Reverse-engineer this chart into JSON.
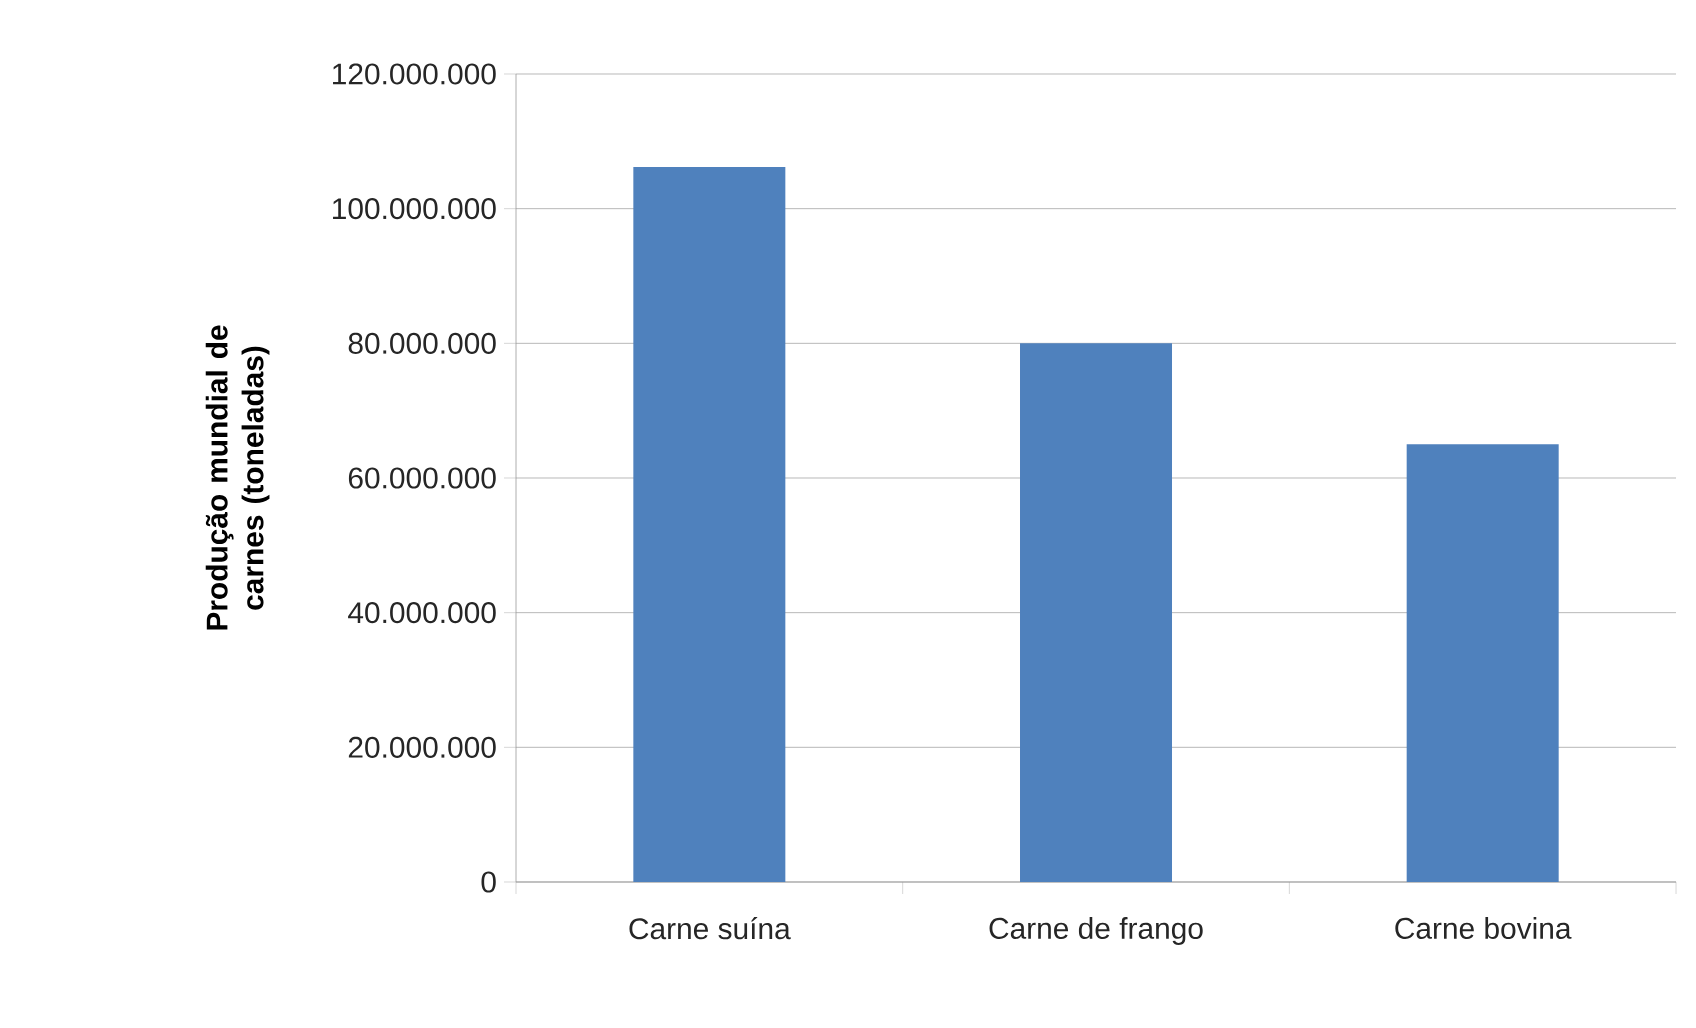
{
  "chart_data": {
    "type": "bar",
    "ylabel": "Produção mundial de carnes (toneladas)",
    "categories": [
      "Carne suína",
      "Carne de frango",
      "Carne bovina"
    ],
    "values": [
      106200000,
      80000000,
      65000000
    ],
    "color": "#4f81bd",
    "ylim": [
      0,
      120000000
    ],
    "yticks": [
      0,
      {
        "value": 20000000,
        "label": "20.000.000"
      },
      {
        "value": 40000000,
        "label": "40.000.000"
      },
      {
        "value": 60000000,
        "label": "60.000.000"
      },
      {
        "value": 80000000,
        "label": "80.000.000"
      },
      {
        "value": 100000000,
        "label": "100.000.000"
      },
      {
        "value": 120000000,
        "label": "120.000.000"
      }
    ],
    "grid": "y"
  }
}
